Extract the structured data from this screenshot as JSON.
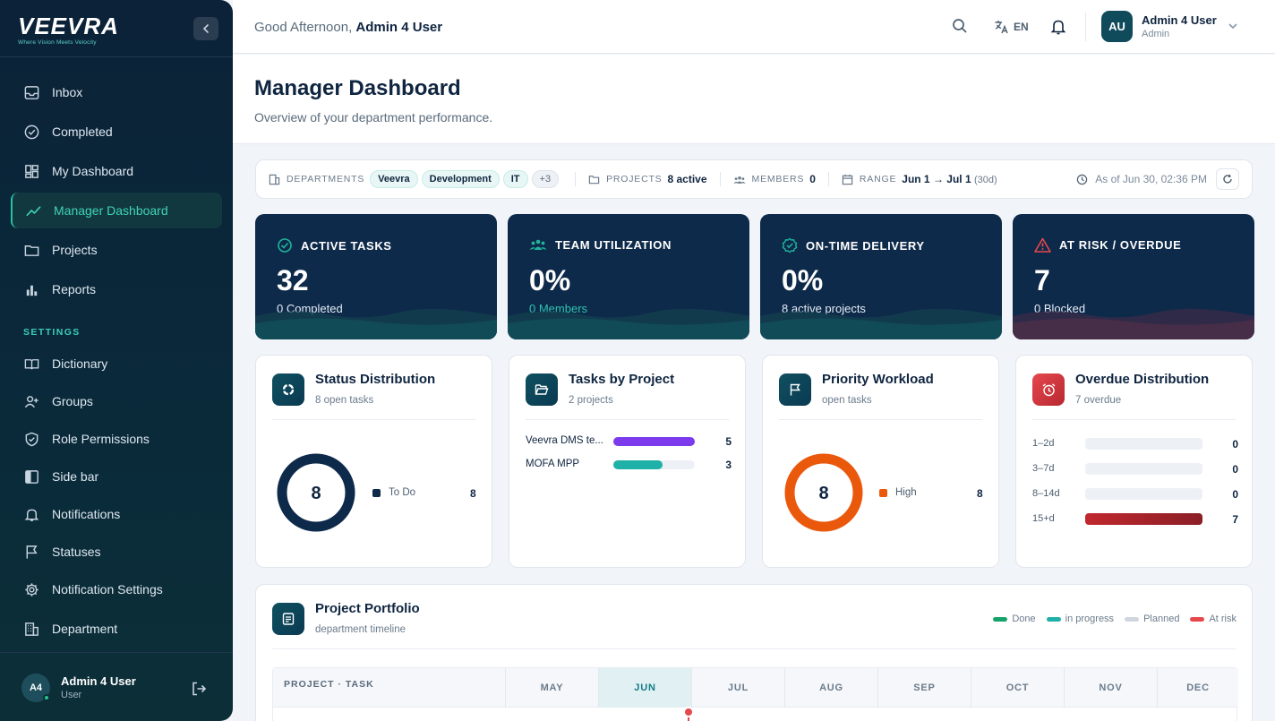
{
  "brand": {
    "name": "VEEVRA",
    "tagline": "Where Vision Meets Velocity"
  },
  "sidebar": {
    "items": [
      {
        "label": "Inbox",
        "icon": "inbox-icon"
      },
      {
        "label": "Completed",
        "icon": "check-circle-icon"
      },
      {
        "label": "My Dashboard",
        "icon": "grid-icon"
      },
      {
        "label": "Manager Dashboard",
        "icon": "trend-icon",
        "active": true
      },
      {
        "label": "Projects",
        "icon": "folder-icon"
      },
      {
        "label": "Reports",
        "icon": "bar-chart-icon"
      }
    ],
    "settings_heading": "SETTINGS",
    "settings_items": [
      {
        "label": "Dictionary",
        "icon": "book-icon"
      },
      {
        "label": "Groups",
        "icon": "user-plus-icon"
      },
      {
        "label": "Role Permissions",
        "icon": "shield-icon"
      },
      {
        "label": "Side bar",
        "icon": "sidebar-icon"
      },
      {
        "label": "Notifications",
        "icon": "bell-icon"
      },
      {
        "label": "Statuses",
        "icon": "flag-icon"
      },
      {
        "label": "Notification Settings",
        "icon": "gear-icon"
      },
      {
        "label": "Department",
        "icon": "building-icon"
      }
    ],
    "user": {
      "initials": "A4",
      "name": "Admin 4 User",
      "role": "User"
    }
  },
  "topbar": {
    "greeting": "Good Afternoon,",
    "greeting_name": "Admin 4 User",
    "language": "EN",
    "user": {
      "initials": "AU",
      "name": "Admin 4 User",
      "role": "Admin"
    }
  },
  "page": {
    "title": "Manager Dashboard",
    "subtitle": "Overview of your department performance."
  },
  "filters": {
    "departments_label": "DEPARTMENTS",
    "departments": [
      "Veevra",
      "Development",
      "IT"
    ],
    "departments_more": "+3",
    "projects_label": "PROJECTS",
    "projects_value": "8 active",
    "members_label": "MEMBERS",
    "members_value": "0",
    "range_label": "RANGE",
    "range_value": "Jun 1 → Jul 1",
    "range_days": "(30d)",
    "as_of": "As of Jun 30, 02:36 PM"
  },
  "kpis": [
    {
      "title": "ACTIVE TASKS",
      "value": "32",
      "sub": "0 Completed",
      "color": "#1fb59c"
    },
    {
      "title": "TEAM UTILIZATION",
      "value": "0%",
      "sub": "0 Members",
      "color": "#1fb59c"
    },
    {
      "title": "ON-TIME DELIVERY",
      "value": "0%",
      "sub": "8 active projects",
      "color": "#1fb59c"
    },
    {
      "title": "AT RISK / OVERDUE",
      "value": "7",
      "sub": "0 Blocked",
      "color": "#e5484d"
    }
  ],
  "status_distribution": {
    "title": "Status Distribution",
    "subtitle": "8 open tasks",
    "total": "8",
    "legend": [
      {
        "label": "To Do",
        "value": "8",
        "color": "#0e2a4a"
      }
    ]
  },
  "tasks_by_project": {
    "title": "Tasks by Project",
    "subtitle": "2 projects",
    "rows": [
      {
        "label": "Veevra DMS te...",
        "value": 5,
        "color": "#7c3aed"
      },
      {
        "label": "MOFA MPP",
        "value": 3,
        "color": "#1fb0a8"
      }
    ]
  },
  "priority_workload": {
    "title": "Priority Workload",
    "subtitle": "open tasks",
    "total": "8",
    "legend": [
      {
        "label": "High",
        "value": "8",
        "color": "#ea580c"
      }
    ]
  },
  "overdue_distribution": {
    "title": "Overdue Distribution",
    "subtitle": "7 overdue",
    "rows": [
      {
        "label": "1–2d",
        "value": 0
      },
      {
        "label": "3–7d",
        "value": 0
      },
      {
        "label": "8–14d",
        "value": 0
      },
      {
        "label": "15+d",
        "value": 7
      }
    ]
  },
  "portfolio": {
    "title": "Project Portfolio",
    "subtitle": "department timeline",
    "legend": [
      {
        "label": "Done",
        "color": "#16a36b"
      },
      {
        "label": "in progress",
        "color": "#1fb0a8"
      },
      {
        "label": "Planned",
        "color": "#cfd6df"
      },
      {
        "label": "At risk",
        "color": "#e5484d"
      }
    ],
    "column_header": "PROJECT · TASK",
    "months": [
      "MAY",
      "JUN",
      "JUL",
      "AUG",
      "SEP",
      "OCT",
      "NOV",
      "DEC"
    ],
    "current_month": "JUN"
  }
}
